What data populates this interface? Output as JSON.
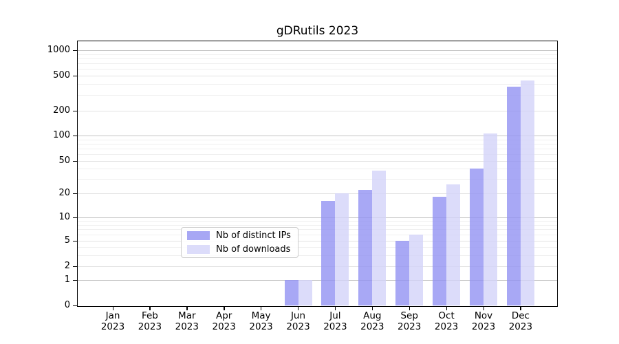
{
  "title": "gDRutils 2023",
  "legend": {
    "items": [
      {
        "label": "Nb of distinct IPs",
        "swatch_color": "#a7a7f4"
      },
      {
        "label": "Nb of downloads",
        "swatch_color": "#dcdcfa"
      }
    ]
  },
  "colors": {
    "bar_distinct_ips": "#9292f3",
    "bar_downloads": "#d3d3f9",
    "grid_major": "#c3c3c3",
    "grid_minor": "#efefef",
    "axis": "#000000"
  },
  "chart_data": {
    "type": "bar",
    "title": "gDRutils 2023",
    "x": [
      "Jan 2023",
      "Feb 2023",
      "Mar 2023",
      "Apr 2023",
      "May 2023",
      "Jun 2023",
      "Jul 2023",
      "Aug 2023",
      "Sep 2023",
      "Oct 2023",
      "Nov 2023",
      "Dec 2023"
    ],
    "series": [
      {
        "name": "Nb of distinct IPs",
        "color": "#9292f3",
        "values": [
          0,
          0,
          0,
          0,
          0,
          1,
          16,
          22,
          5,
          18,
          40,
          375
        ]
      },
      {
        "name": "Nb of downloads",
        "color": "#d3d3f9",
        "values": [
          0,
          0,
          0,
          0,
          0,
          1,
          20,
          38,
          6,
          26,
          105,
          440
        ]
      }
    ],
    "xlabel": "",
    "ylabel": "",
    "y_ticks": [
      0,
      1,
      2,
      5,
      10,
      20,
      50,
      100,
      200,
      500,
      1000
    ],
    "y_scale": "log-like (0 baseline, decades 1-1000)",
    "ylim": [
      0,
      1300
    ],
    "grid": "horizontal major + log minor gridlines",
    "legend_position": "inside lower-center"
  }
}
